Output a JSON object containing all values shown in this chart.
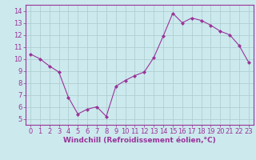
{
  "x": [
    0,
    1,
    2,
    3,
    4,
    5,
    6,
    7,
    8,
    9,
    10,
    11,
    12,
    13,
    14,
    15,
    16,
    17,
    18,
    19,
    20,
    21,
    22,
    23
  ],
  "y": [
    10.4,
    10.0,
    9.4,
    8.9,
    6.8,
    5.4,
    5.8,
    6.0,
    5.2,
    7.7,
    8.2,
    8.6,
    8.9,
    10.1,
    11.9,
    13.8,
    13.0,
    13.4,
    13.2,
    12.8,
    12.3,
    12.0,
    11.1,
    9.7
  ],
  "line_color": "#993399",
  "marker": "D",
  "marker_size": 2,
  "bg_color": "#cce9ed",
  "grid_color": "#aacccc",
  "xlabel": "Windchill (Refroidissement éolien,°C)",
  "xlabel_color": "#993399",
  "tick_color": "#993399",
  "spine_color": "#993399",
  "ylim": [
    4.5,
    14.5
  ],
  "xlim": [
    -0.5,
    23.5
  ],
  "yticks": [
    5,
    6,
    7,
    8,
    9,
    10,
    11,
    12,
    13,
    14
  ],
  "xticks": [
    0,
    1,
    2,
    3,
    4,
    5,
    6,
    7,
    8,
    9,
    10,
    11,
    12,
    13,
    14,
    15,
    16,
    17,
    18,
    19,
    20,
    21,
    22,
    23
  ],
  "tick_fontsize": 6,
  "xlabel_fontsize": 6.5
}
